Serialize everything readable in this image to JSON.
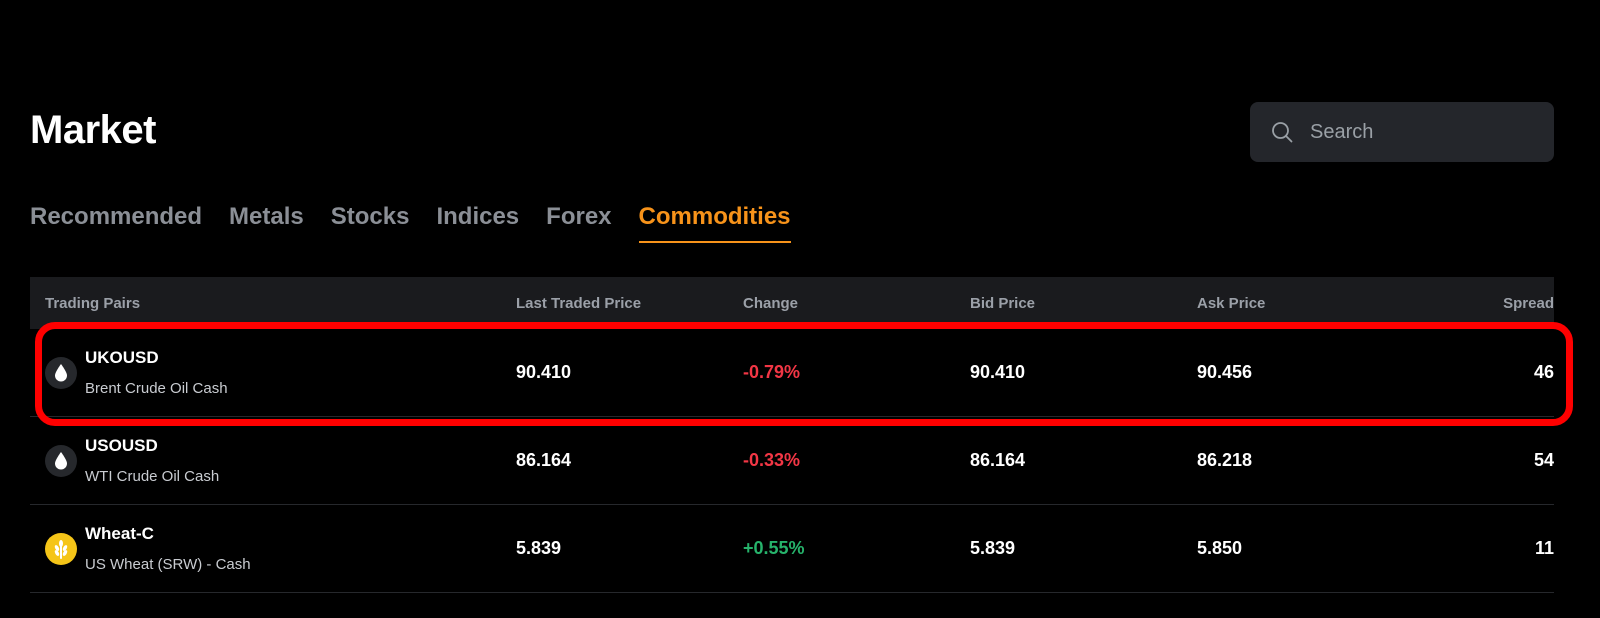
{
  "page": {
    "title": "Market"
  },
  "search": {
    "placeholder": "Search"
  },
  "tabs": [
    {
      "label": "Recommended"
    },
    {
      "label": "Metals"
    },
    {
      "label": "Stocks"
    },
    {
      "label": "Indices"
    },
    {
      "label": "Forex"
    },
    {
      "label": "Commodities",
      "active": true
    }
  ],
  "table": {
    "headers": {
      "pair": "Trading Pairs",
      "last": "Last Traded Price",
      "change": "Change",
      "bid": "Bid Price",
      "ask": "Ask Price",
      "spread": "Spread"
    },
    "rows": [
      {
        "symbol": "UKOUSD",
        "name": "Brent Crude Oil Cash",
        "icon": "oil-drop-icon",
        "last": "90.410",
        "change": "-0.79%",
        "bid": "90.410",
        "ask": "90.456",
        "spread": "46",
        "highlighted": true
      },
      {
        "symbol": "USOUSD",
        "name": "WTI Crude Oil Cash",
        "icon": "oil-drop-icon",
        "last": "86.164",
        "change": "-0.33%",
        "bid": "86.164",
        "ask": "86.218",
        "spread": "54"
      },
      {
        "symbol": "Wheat-C",
        "name": "US Wheat (SRW) - Cash",
        "icon": "wheat-icon",
        "last": "5.839",
        "change": "+0.55%",
        "bid": "5.839",
        "ask": "5.850",
        "spread": "11"
      }
    ]
  },
  "colors": {
    "accent": "#f7931a",
    "negative": "#f23645",
    "positive": "#26b36b",
    "highlight_box": "#ff0000"
  }
}
